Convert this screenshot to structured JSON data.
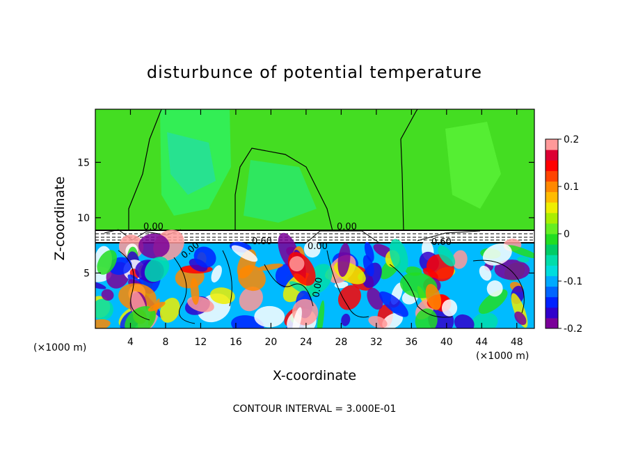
{
  "chart_data": {
    "type": "heatmap",
    "title": "disturbunce of potential temperature",
    "xlabel": "X-coordinate",
    "ylabel": "Z-coordinate",
    "x_unit": "(×1000 m)",
    "x_ticks": [
      4,
      8,
      12,
      16,
      20,
      24,
      28,
      32,
      36,
      40,
      44,
      48
    ],
    "y_ticks": [
      5,
      10,
      15
    ],
    "xlim": [
      0,
      50
    ],
    "ylim": [
      0,
      19.8
    ],
    "colorbar": {
      "ticks": [
        "0.2",
        "0.1",
        "0",
        "-0.1",
        "-0.2"
      ],
      "tick_values": [
        0.2,
        0.1,
        0,
        -0.1,
        -0.2
      ],
      "range": [
        -0.2,
        0.2
      ],
      "colors": [
        "#7a0099",
        "#3000cc",
        "#0022ff",
        "#0066ff",
        "#00aaff",
        "#00dddd",
        "#00ddaa",
        "#00cc66",
        "#22dd22",
        "#66ee22",
        "#aaee00",
        "#eeee00",
        "#ffbb00",
        "#ff8800",
        "#ff4400",
        "#ff0000",
        "#dd0033",
        "#ff9999"
      ]
    },
    "contour_labels": [
      "0.00",
      "0.00",
      "0.60",
      "0.00",
      "0.00",
      "0.00",
      "0.60"
    ],
    "footnote": "CONTOUR INTERVAL = 3.000E-01"
  }
}
